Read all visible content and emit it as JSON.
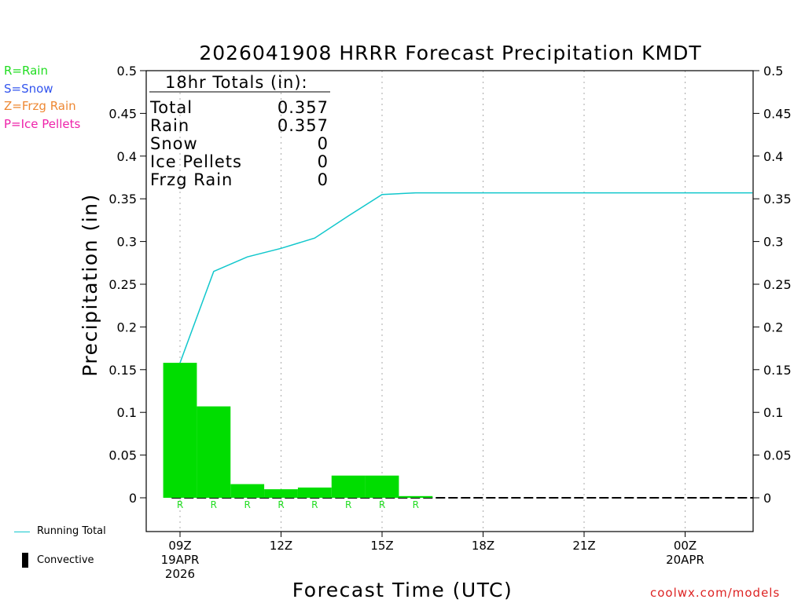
{
  "chart_data": {
    "type": "bar",
    "title": "2026041908 HRRR Forecast Precipitation KMDT",
    "xlabel": "Forecast Time (UTC)",
    "ylabel": "Precipitation (in)",
    "ylim": [
      -0.04,
      0.5
    ],
    "yticks": [
      0,
      0.05,
      0.1,
      0.15,
      0.2,
      0.25,
      0.3,
      0.35,
      0.4,
      0.45,
      0.5
    ],
    "ytick_labels": [
      "0",
      "0.05",
      "0.1",
      "0.15",
      "0.2",
      "0.25",
      "0.3",
      "0.35",
      "0.4",
      "0.45",
      "0.5"
    ],
    "xrange_hours": [
      -1,
      17
    ],
    "xticks": [
      {
        "hour": 0,
        "lines": [
          "09Z",
          "19APR",
          "2026"
        ]
      },
      {
        "hour": 3,
        "lines": [
          "12Z"
        ]
      },
      {
        "hour": 6,
        "lines": [
          "15Z"
        ]
      },
      {
        "hour": 9,
        "lines": [
          "18Z"
        ]
      },
      {
        "hour": 12,
        "lines": [
          "21Z"
        ]
      },
      {
        "hour": 15,
        "lines": [
          "00Z",
          "20APR"
        ]
      }
    ],
    "bars": [
      {
        "hour": 0,
        "value": 0.158,
        "type": "R"
      },
      {
        "hour": 1,
        "value": 0.107,
        "type": "R"
      },
      {
        "hour": 2,
        "value": 0.016,
        "type": "R"
      },
      {
        "hour": 3,
        "value": 0.01,
        "type": "R"
      },
      {
        "hour": 4,
        "value": 0.012,
        "type": "R"
      },
      {
        "hour": 5,
        "value": 0.026,
        "type": "R"
      },
      {
        "hour": 6,
        "value": 0.026,
        "type": "R"
      },
      {
        "hour": 7,
        "value": 0.002,
        "type": "R"
      }
    ],
    "running_total": {
      "hours": [
        0,
        1,
        2,
        3,
        4,
        5,
        6,
        7,
        8,
        9,
        10,
        11,
        12,
        13,
        14,
        15,
        16,
        17
      ],
      "values": [
        0.158,
        0.265,
        0.282,
        0.292,
        0.304,
        0.33,
        0.355,
        0.357,
        0.357,
        0.357,
        0.357,
        0.357,
        0.357,
        0.357,
        0.357,
        0.357,
        0.357,
        0.357
      ]
    },
    "totals_box": {
      "heading": "18hr Totals (in):",
      "rows": [
        {
          "label": "Total",
          "value": "0.357"
        },
        {
          "label": "Rain",
          "value": "0.357"
        },
        {
          "label": "Snow",
          "value": "0"
        },
        {
          "label": "Ice Pellets",
          "value": "0"
        },
        {
          "label": "Frzg Rain",
          "value": "0"
        }
      ]
    },
    "type_legend": [
      {
        "text": "R=Rain",
        "color": "#22dd22"
      },
      {
        "text": "S=Snow",
        "color": "#3355ee"
      },
      {
        "text": "Z=Frzg Rain",
        "color": "#ee8833"
      },
      {
        "text": "P=Ice Pellets",
        "color": "#ee22aa"
      }
    ],
    "line_legend": [
      {
        "text": "Running Total",
        "kind": "line"
      },
      {
        "text": "Convective",
        "kind": "bar"
      }
    ],
    "watermark": "coolwx.com/models"
  },
  "colors": {
    "bar": "#00dd00",
    "line": "#11c7cc",
    "rain_marker": "#22dd22",
    "grid": "#aaaaaa",
    "watermark": "#dd2222"
  }
}
